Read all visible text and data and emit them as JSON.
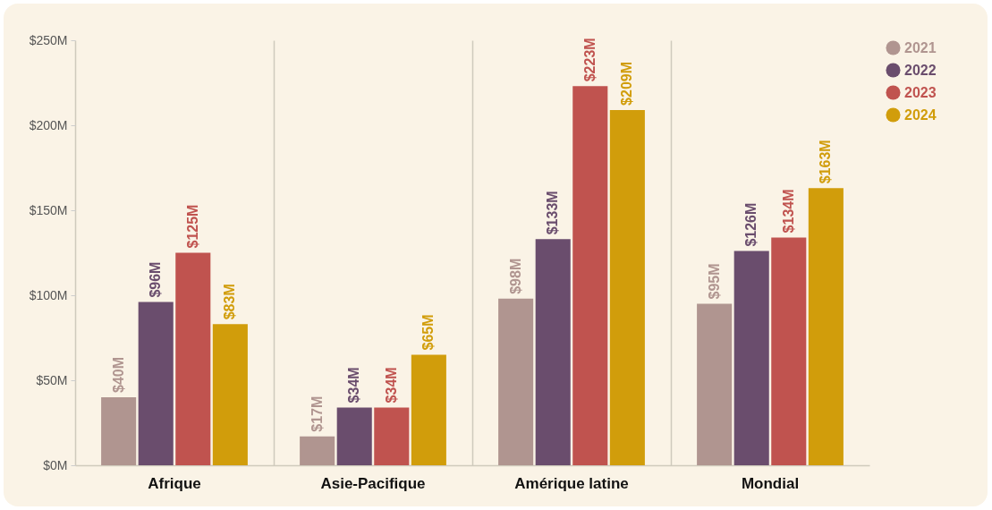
{
  "chart_data": {
    "type": "bar",
    "categories": [
      "Afrique",
      "Asie-Pacifique",
      "Amérique latine",
      "Mondial"
    ],
    "series": [
      {
        "name": "2021",
        "color": "#b09590",
        "values": [
          40,
          17,
          98,
          95
        ],
        "value_labels": [
          "$40M",
          "$17M",
          "$98M",
          "$95M"
        ]
      },
      {
        "name": "2022",
        "color": "#6a4d6d",
        "values": [
          96,
          34,
          133,
          126
        ],
        "value_labels": [
          "$96M",
          "$34M",
          "$133M",
          "$126M"
        ]
      },
      {
        "name": "2023",
        "color": "#c0534f",
        "values": [
          125,
          34,
          223,
          134
        ],
        "value_labels": [
          "$125M",
          "$34M",
          "$223M",
          "$134M"
        ]
      },
      {
        "name": "2024",
        "color": "#d19d0b",
        "values": [
          83,
          65,
          209,
          163
        ],
        "value_labels": [
          "$83M",
          "$65M",
          "$209M",
          "$163M"
        ]
      }
    ],
    "ylim": [
      0,
      250
    ],
    "yticks": [
      {
        "value": 0,
        "label": "$0M"
      },
      {
        "value": 50,
        "label": "$50M"
      },
      {
        "value": 100,
        "label": "$100M"
      },
      {
        "value": 150,
        "label": "$150M"
      },
      {
        "value": 200,
        "label": "$200M"
      },
      {
        "value": 250,
        "label": "$250M"
      }
    ],
    "grid": "x",
    "legend": "top right"
  }
}
